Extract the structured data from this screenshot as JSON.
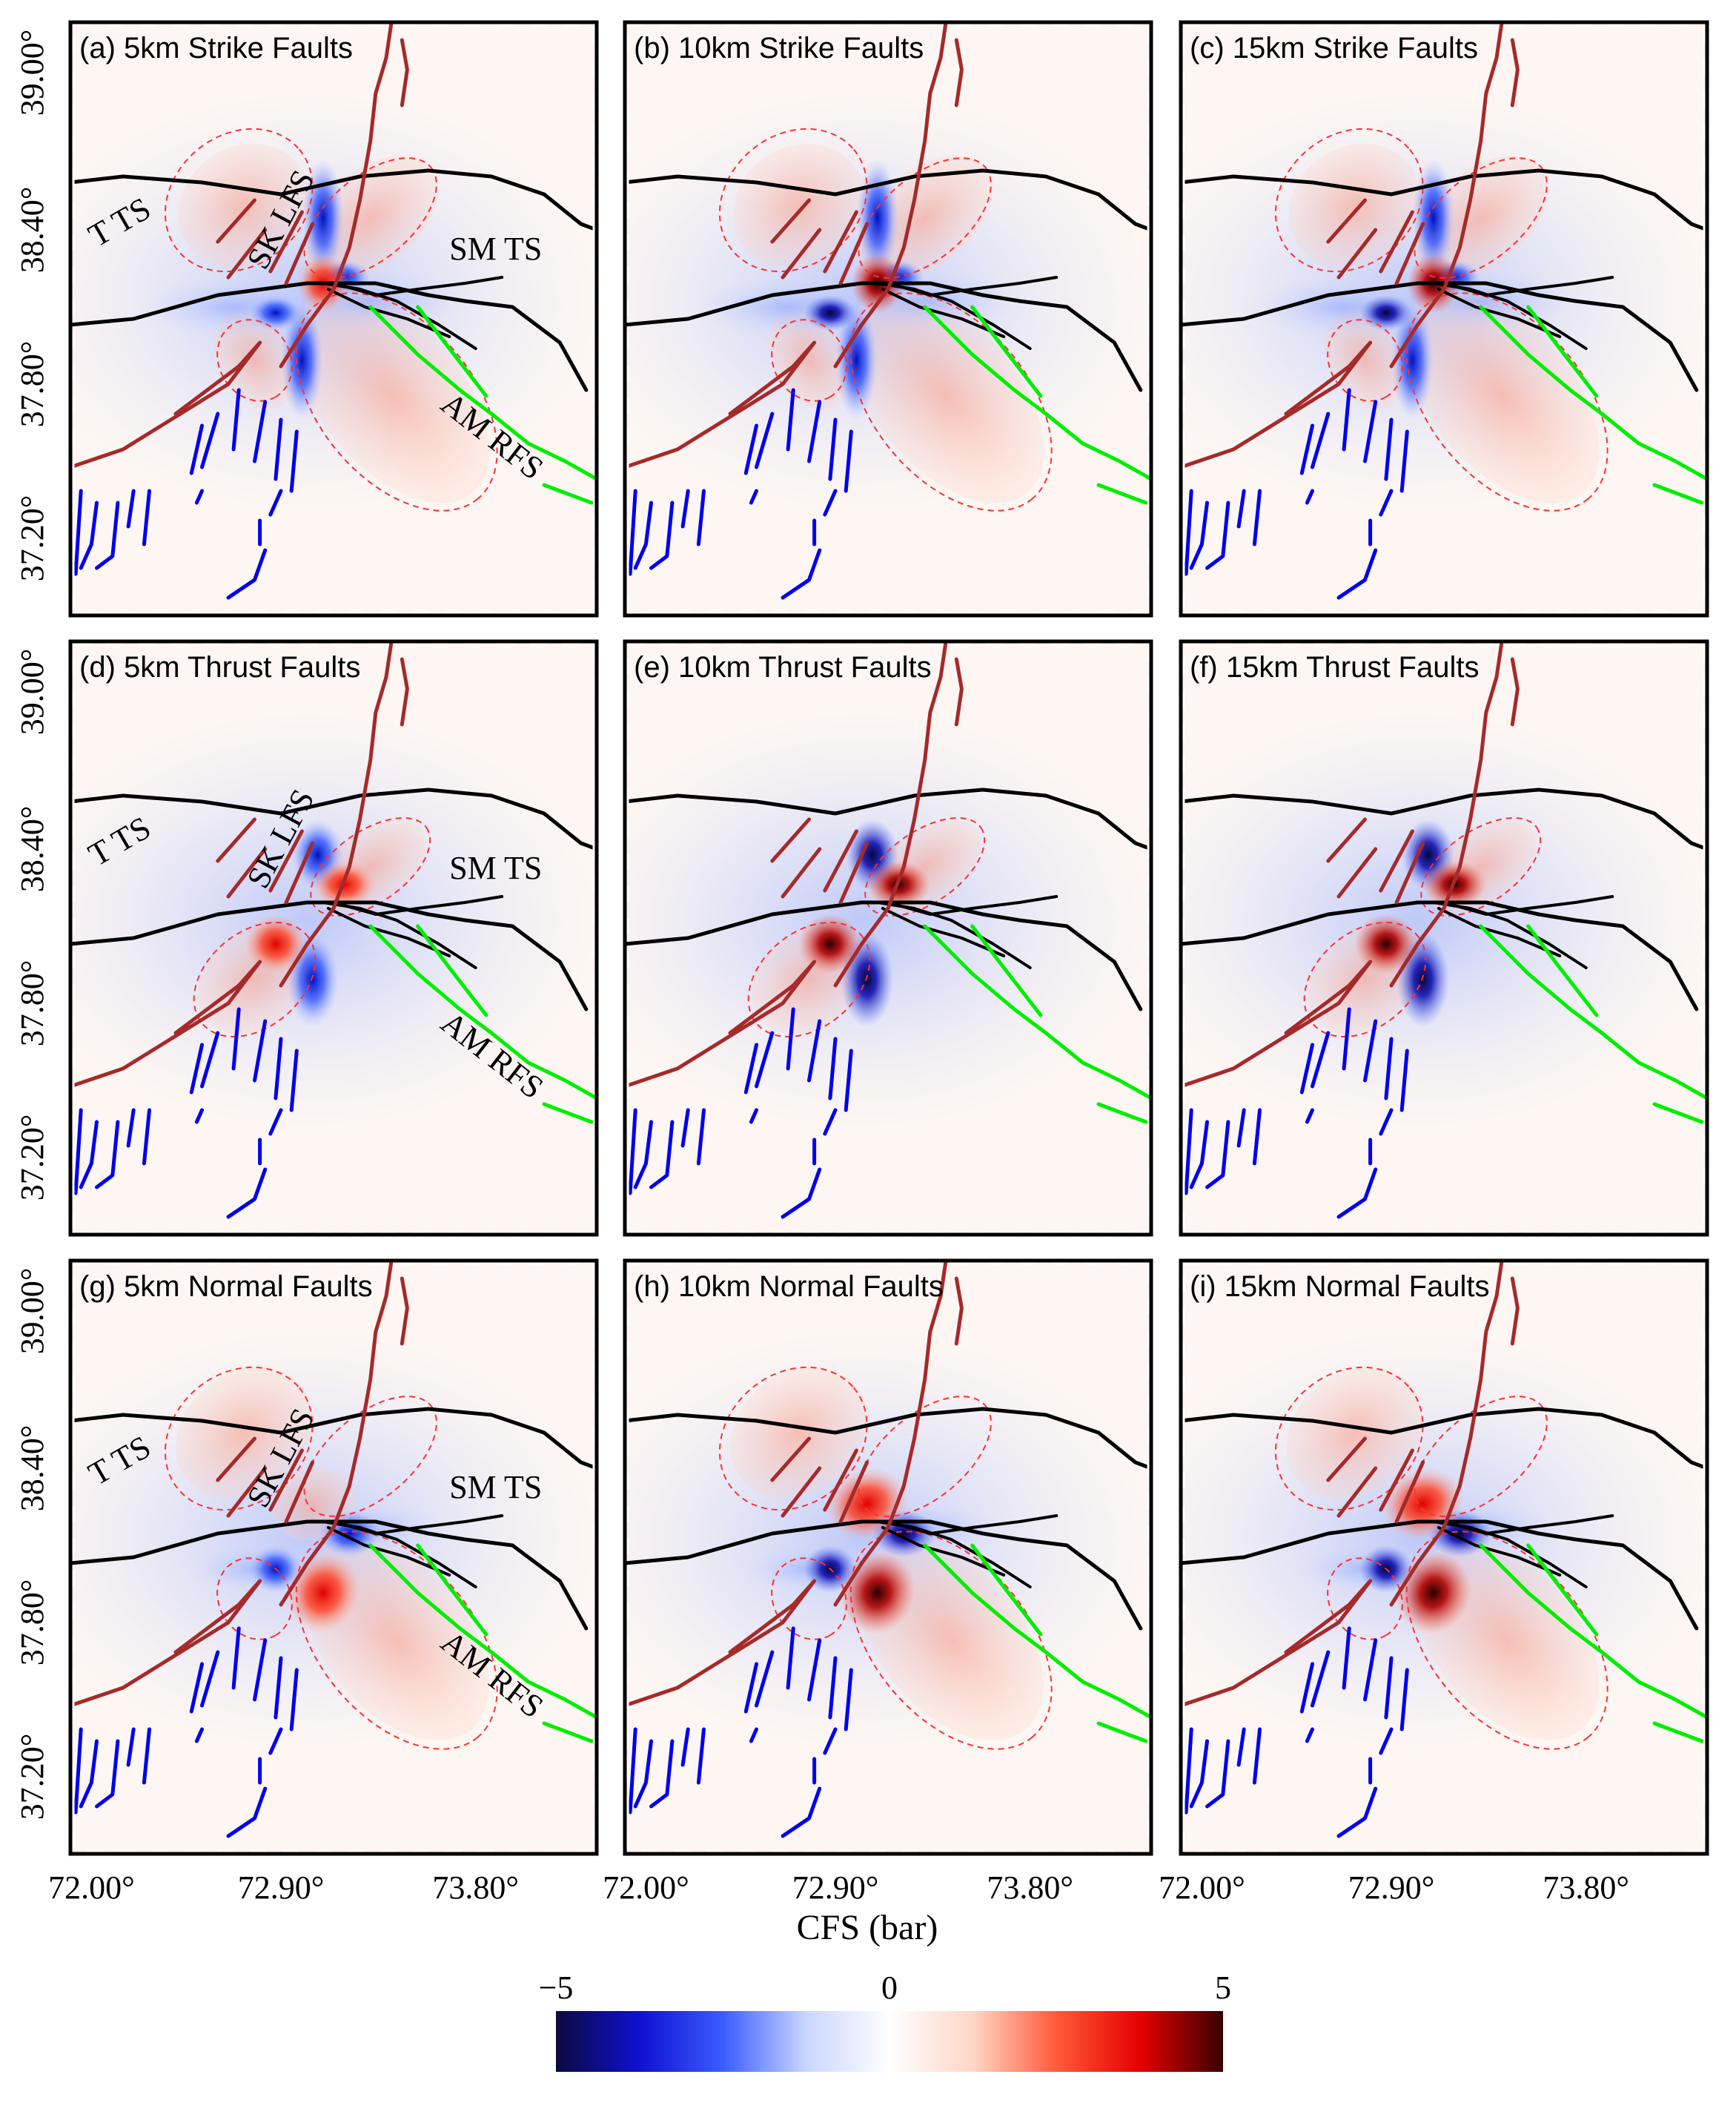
{
  "figure": {
    "colorbar": {
      "title": "CFS (bar)",
      "min_label": "−5",
      "mid_label": "0",
      "max_label": "5",
      "range": [
        -5,
        5
      ],
      "stops": [
        "#0a0a40",
        "#1010d0",
        "#3a5cff",
        "#c9d6ff",
        "#ffffff",
        "#ffd6c6",
        "#ff5a3a",
        "#e60000",
        "#3a0000"
      ]
    },
    "axes": {
      "x_tick_labels": [
        "72.00°",
        "72.90°",
        "73.80°"
      ],
      "y_tick_labels": [
        "39.00°",
        "38.40°",
        "37.80°",
        "37.20°"
      ]
    },
    "fault_labels": {
      "t_ts": "T TS",
      "sk_lfs": "SK LFS",
      "sm_ts": "SM TS",
      "am_rfs": "AM RFS"
    },
    "fault_colors": {
      "thrust": "#000000",
      "sk_lfs": "#a52a2a",
      "blue_faults": "#0000ee",
      "am_rfs": "#00ee00",
      "contour": "#ff3030"
    },
    "panels": [
      {
        "title": "(a) 5km Strike Faults",
        "type": "strike",
        "depth_km": 5,
        "show_labels": true
      },
      {
        "title": "(b) 10km Strike Faults",
        "type": "strike",
        "depth_km": 10,
        "show_labels": false
      },
      {
        "title": "(c) 15km Strike Faults",
        "type": "strike",
        "depth_km": 15,
        "show_labels": false
      },
      {
        "title": "(d) 5km Thrust Faults",
        "type": "thrust",
        "depth_km": 5,
        "show_labels": true
      },
      {
        "title": "(e) 10km Thrust Faults",
        "type": "thrust",
        "depth_km": 10,
        "show_labels": false
      },
      {
        "title": "(f) 15km Thrust Faults",
        "type": "thrust",
        "depth_km": 15,
        "show_labels": false
      },
      {
        "title": "(g) 5km Normal Faults",
        "type": "normal",
        "depth_km": 5,
        "show_labels": true
      },
      {
        "title": "(h) 10km Normal Faults",
        "type": "normal",
        "depth_km": 10,
        "show_labels": false
      },
      {
        "title": "(i) 15km Normal Faults",
        "type": "normal",
        "depth_km": 15,
        "show_labels": false
      }
    ]
  }
}
